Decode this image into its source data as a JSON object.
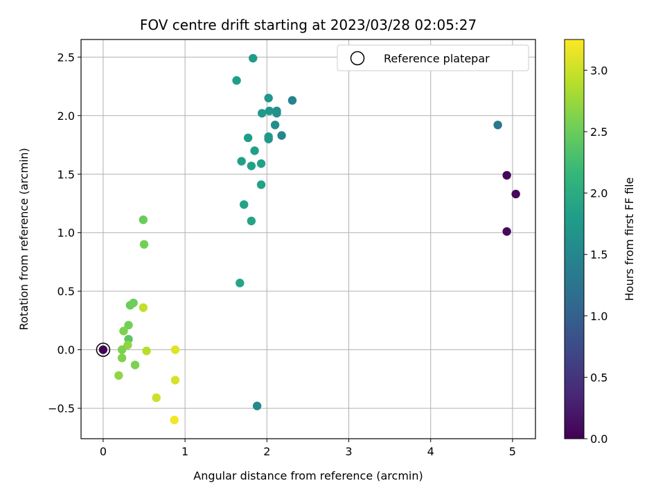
{
  "chart_data": {
    "type": "scatter",
    "title": "FOV centre drift starting at 2023/03/28 02:05:27",
    "xlabel": "Angular distance from reference (arcmin)",
    "ylabel": "Rotation from reference (arcmin)",
    "xlim": [
      -0.27,
      5.28
    ],
    "ylim": [
      -0.76,
      2.65
    ],
    "x_ticks": [
      0,
      1,
      2,
      3,
      4,
      5
    ],
    "x_tick_labels": [
      "0",
      "1",
      "2",
      "3",
      "4",
      "5"
    ],
    "y_ticks": [
      -0.5,
      0.0,
      0.5,
      1.0,
      1.5,
      2.0,
      2.5
    ],
    "y_tick_labels": [
      "−0.5",
      "0.0",
      "0.5",
      "1.0",
      "1.5",
      "2.0",
      "2.5"
    ],
    "grid": true,
    "legend": {
      "position": "top-right",
      "label": "Reference platepar"
    },
    "reference_point": {
      "x": 0,
      "y": 0
    },
    "colorbar": {
      "label": "Hours from first FF file",
      "min": 0.0,
      "max": 3.25,
      "ticks": [
        0.0,
        0.5,
        1.0,
        1.5,
        2.0,
        2.5,
        3.0
      ],
      "tick_labels": [
        "0.0",
        "0.5",
        "1.0",
        "1.5",
        "2.0",
        "2.5",
        "3.0"
      ],
      "colormap": "viridis",
      "colormap_stops": [
        "#440154",
        "#482878",
        "#3e4989",
        "#31688e",
        "#26828e",
        "#1f9e89",
        "#35b779",
        "#6ece58",
        "#b5de2b",
        "#fde725"
      ]
    },
    "points": [
      {
        "x": 0.0,
        "y": 0.0,
        "c": 0.0
      },
      {
        "x": 4.93,
        "y": 1.49,
        "c": 0.05
      },
      {
        "x": 5.04,
        "y": 1.33,
        "c": 0.08
      },
      {
        "x": 4.93,
        "y": 1.01,
        "c": 0.1
      },
      {
        "x": 4.82,
        "y": 1.92,
        "c": 1.3
      },
      {
        "x": 2.31,
        "y": 2.13,
        "c": 1.45
      },
      {
        "x": 2.18,
        "y": 1.83,
        "c": 1.5
      },
      {
        "x": 1.88,
        "y": -0.48,
        "c": 1.55
      },
      {
        "x": 2.1,
        "y": 1.92,
        "c": 1.6
      },
      {
        "x": 2.12,
        "y": 2.02,
        "c": 1.62
      },
      {
        "x": 2.12,
        "y": 2.04,
        "c": 1.63
      },
      {
        "x": 2.02,
        "y": 2.15,
        "c": 1.7
      },
      {
        "x": 2.03,
        "y": 2.04,
        "c": 1.72
      },
      {
        "x": 2.02,
        "y": 1.8,
        "c": 1.72
      },
      {
        "x": 2.02,
        "y": 1.82,
        "c": 1.74
      },
      {
        "x": 1.94,
        "y": 2.02,
        "c": 1.75
      },
      {
        "x": 1.83,
        "y": 2.49,
        "c": 1.78
      },
      {
        "x": 1.63,
        "y": 2.3,
        "c": 1.8
      },
      {
        "x": 1.77,
        "y": 1.81,
        "c": 1.8
      },
      {
        "x": 1.85,
        "y": 1.7,
        "c": 1.82
      },
      {
        "x": 1.69,
        "y": 1.61,
        "c": 1.83
      },
      {
        "x": 1.81,
        "y": 1.57,
        "c": 1.84
      },
      {
        "x": 1.93,
        "y": 1.59,
        "c": 1.85
      },
      {
        "x": 1.93,
        "y": 1.41,
        "c": 1.86
      },
      {
        "x": 1.72,
        "y": 1.24,
        "c": 1.87
      },
      {
        "x": 1.81,
        "y": 1.1,
        "c": 1.88
      },
      {
        "x": 1.67,
        "y": 0.57,
        "c": 1.9
      },
      {
        "x": 0.49,
        "y": 1.11,
        "c": 2.5
      },
      {
        "x": 0.5,
        "y": 0.9,
        "c": 2.55
      },
      {
        "x": 0.33,
        "y": 0.38,
        "c": 2.5
      },
      {
        "x": 0.37,
        "y": 0.4,
        "c": 2.52
      },
      {
        "x": 0.31,
        "y": 0.09,
        "c": 2.4
      },
      {
        "x": 0.31,
        "y": 0.21,
        "c": 2.55
      },
      {
        "x": 0.25,
        "y": 0.16,
        "c": 2.6
      },
      {
        "x": 0.3,
        "y": 0.04,
        "c": 2.7
      },
      {
        "x": 0.23,
        "y": 0.0,
        "c": 2.6
      },
      {
        "x": 0.23,
        "y": -0.07,
        "c": 2.62
      },
      {
        "x": 0.39,
        "y": -0.13,
        "c": 2.6
      },
      {
        "x": 0.19,
        "y": -0.22,
        "c": 2.7
      },
      {
        "x": 0.49,
        "y": 0.36,
        "c": 2.95
      },
      {
        "x": 0.53,
        "y": -0.01,
        "c": 2.9
      },
      {
        "x": 0.88,
        "y": 0.0,
        "c": 3.1
      },
      {
        "x": 0.88,
        "y": -0.26,
        "c": 3.05
      },
      {
        "x": 0.65,
        "y": -0.41,
        "c": 3.0
      },
      {
        "x": 0.87,
        "y": -0.6,
        "c": 3.2
      }
    ]
  }
}
